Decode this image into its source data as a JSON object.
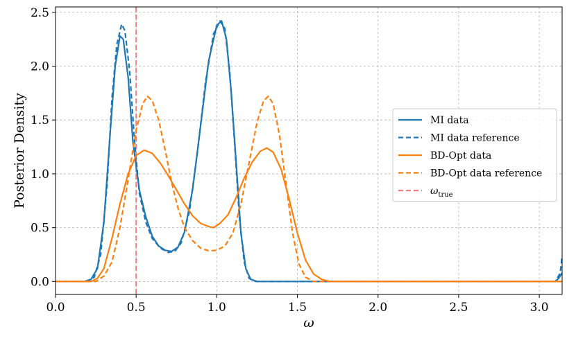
{
  "chart_data": {
    "type": "line",
    "xlabel": "ω",
    "ylabel": "Posterior Density",
    "xlim": [
      0.0,
      3.14159
    ],
    "ylim": [
      -0.12,
      2.55
    ],
    "xticks": [
      0.0,
      0.5,
      1.0,
      1.5,
      2.0,
      2.5,
      3.0
    ],
    "xtick_labels": [
      "0.0",
      "0.5",
      "1.0",
      "1.5",
      "2.0",
      "2.5",
      "3.0"
    ],
    "yticks": [
      0.0,
      0.5,
      1.0,
      1.5,
      2.0,
      2.5
    ],
    "ytick_labels": [
      "0.0",
      "0.5",
      "1.0",
      "1.5",
      "2.0",
      "2.5"
    ],
    "grid": true,
    "legend_position": "center-right",
    "vline": {
      "x": 0.5,
      "name": "ω",
      "subscript": "true",
      "color": "#f08080"
    },
    "series": [
      {
        "name": "MI data",
        "color": "#1f77b4",
        "dash": "solid",
        "points": [
          [
            0.0,
            0.0
          ],
          [
            0.18,
            0.0
          ],
          [
            0.22,
            0.02
          ],
          [
            0.26,
            0.12
          ],
          [
            0.3,
            0.55
          ],
          [
            0.34,
            1.4
          ],
          [
            0.37,
            2.0
          ],
          [
            0.4,
            2.28
          ],
          [
            0.42,
            2.25
          ],
          [
            0.45,
            1.9
          ],
          [
            0.48,
            1.3
          ],
          [
            0.52,
            0.85
          ],
          [
            0.56,
            0.6
          ],
          [
            0.6,
            0.42
          ],
          [
            0.64,
            0.33
          ],
          [
            0.68,
            0.29
          ],
          [
            0.72,
            0.28
          ],
          [
            0.76,
            0.32
          ],
          [
            0.8,
            0.46
          ],
          [
            0.85,
            0.85
          ],
          [
            0.9,
            1.45
          ],
          [
            0.95,
            2.05
          ],
          [
            1.0,
            2.38
          ],
          [
            1.03,
            2.42
          ],
          [
            1.06,
            2.25
          ],
          [
            1.09,
            1.75
          ],
          [
            1.12,
            1.1
          ],
          [
            1.15,
            0.45
          ],
          [
            1.18,
            0.12
          ],
          [
            1.21,
            0.02
          ],
          [
            1.25,
            0.0
          ],
          [
            3.1,
            0.0
          ],
          [
            3.12,
            0.03
          ],
          [
            3.14159,
            0.08
          ]
        ]
      },
      {
        "name": "MI data reference",
        "color": "#1f77b4",
        "dash": "dashed",
        "points": [
          [
            0.0,
            0.0
          ],
          [
            0.2,
            0.0
          ],
          [
            0.24,
            0.04
          ],
          [
            0.28,
            0.25
          ],
          [
            0.32,
            0.9
          ],
          [
            0.35,
            1.7
          ],
          [
            0.38,
            2.2
          ],
          [
            0.41,
            2.39
          ],
          [
            0.43,
            2.33
          ],
          [
            0.46,
            1.95
          ],
          [
            0.49,
            1.3
          ],
          [
            0.52,
            0.82
          ],
          [
            0.56,
            0.55
          ],
          [
            0.6,
            0.4
          ],
          [
            0.65,
            0.31
          ],
          [
            0.7,
            0.27
          ],
          [
            0.74,
            0.28
          ],
          [
            0.78,
            0.36
          ],
          [
            0.83,
            0.65
          ],
          [
            0.88,
            1.2
          ],
          [
            0.93,
            1.85
          ],
          [
            0.98,
            2.3
          ],
          [
            1.02,
            2.42
          ],
          [
            1.05,
            2.35
          ],
          [
            1.08,
            1.95
          ],
          [
            1.11,
            1.3
          ],
          [
            1.14,
            0.6
          ],
          [
            1.17,
            0.18
          ],
          [
            1.2,
            0.03
          ],
          [
            1.24,
            0.0
          ],
          [
            3.1,
            0.0
          ],
          [
            3.13,
            0.08
          ],
          [
            3.14159,
            0.24
          ]
        ]
      },
      {
        "name": "BD-Opt data",
        "color": "#ff7f0e",
        "dash": "solid",
        "points": [
          [
            0.0,
            0.0
          ],
          [
            0.22,
            0.0
          ],
          [
            0.26,
            0.03
          ],
          [
            0.3,
            0.12
          ],
          [
            0.35,
            0.4
          ],
          [
            0.4,
            0.72
          ],
          [
            0.45,
            1.0
          ],
          [
            0.5,
            1.17
          ],
          [
            0.55,
            1.22
          ],
          [
            0.6,
            1.19
          ],
          [
            0.65,
            1.1
          ],
          [
            0.7,
            0.98
          ],
          [
            0.75,
            0.85
          ],
          [
            0.8,
            0.72
          ],
          [
            0.85,
            0.61
          ],
          [
            0.9,
            0.54
          ],
          [
            0.95,
            0.51
          ],
          [
            0.98,
            0.5
          ],
          [
            1.02,
            0.54
          ],
          [
            1.07,
            0.62
          ],
          [
            1.12,
            0.78
          ],
          [
            1.17,
            0.96
          ],
          [
            1.22,
            1.11
          ],
          [
            1.27,
            1.21
          ],
          [
            1.31,
            1.24
          ],
          [
            1.35,
            1.2
          ],
          [
            1.4,
            1.04
          ],
          [
            1.45,
            0.76
          ],
          [
            1.5,
            0.45
          ],
          [
            1.55,
            0.2
          ],
          [
            1.6,
            0.07
          ],
          [
            1.65,
            0.02
          ],
          [
            1.7,
            0.0
          ],
          [
            3.14159,
            0.0
          ]
        ]
      },
      {
        "name": "BD-Opt data reference",
        "color": "#ff7f0e",
        "dash": "dashed",
        "points": [
          [
            0.0,
            0.0
          ],
          [
            0.25,
            0.0
          ],
          [
            0.3,
            0.05
          ],
          [
            0.35,
            0.18
          ],
          [
            0.4,
            0.5
          ],
          [
            0.45,
            0.95
          ],
          [
            0.5,
            1.4
          ],
          [
            0.54,
            1.65
          ],
          [
            0.57,
            1.72
          ],
          [
            0.6,
            1.68
          ],
          [
            0.64,
            1.5
          ],
          [
            0.68,
            1.22
          ],
          [
            0.72,
            0.92
          ],
          [
            0.76,
            0.68
          ],
          [
            0.8,
            0.5
          ],
          [
            0.85,
            0.38
          ],
          [
            0.9,
            0.31
          ],
          [
            0.95,
            0.285
          ],
          [
            1.0,
            0.29
          ],
          [
            1.05,
            0.33
          ],
          [
            1.1,
            0.45
          ],
          [
            1.15,
            0.72
          ],
          [
            1.2,
            1.1
          ],
          [
            1.25,
            1.48
          ],
          [
            1.29,
            1.68
          ],
          [
            1.32,
            1.72
          ],
          [
            1.35,
            1.65
          ],
          [
            1.39,
            1.35
          ],
          [
            1.43,
            0.9
          ],
          [
            1.47,
            0.45
          ],
          [
            1.51,
            0.16
          ],
          [
            1.55,
            0.04
          ],
          [
            1.6,
            0.0
          ],
          [
            3.14159,
            0.0
          ]
        ]
      }
    ]
  }
}
